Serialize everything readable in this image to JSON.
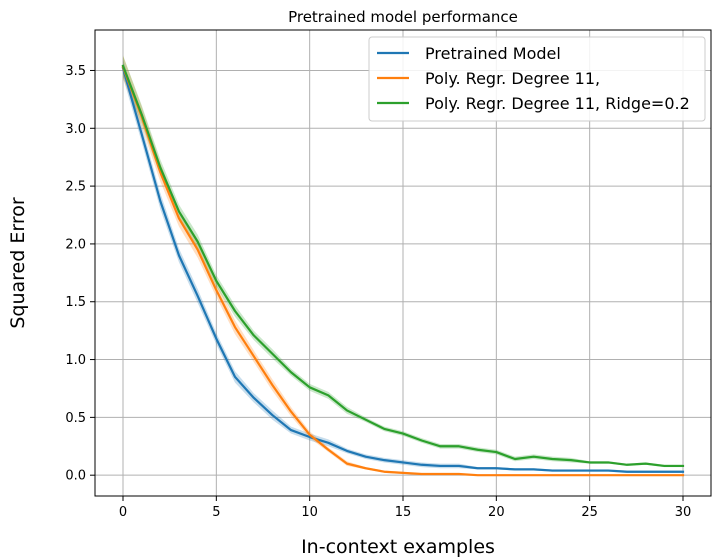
{
  "chart_data": {
    "type": "line",
    "title": "Pretrained model performance",
    "xlabel": "In-context examples",
    "ylabel": "Squared Error",
    "xlim": [
      -1.5,
      31.5
    ],
    "ylim": [
      -0.18,
      3.85
    ],
    "x_ticks": [
      0,
      5,
      10,
      15,
      20,
      25,
      30
    ],
    "x_tick_labels": [
      "0",
      "5",
      "10",
      "15",
      "20",
      "25",
      "30"
    ],
    "y_ticks": [
      0.0,
      0.5,
      1.0,
      1.5,
      2.0,
      2.5,
      3.0,
      3.5
    ],
    "y_tick_labels": [
      "0.0",
      "0.5",
      "1.0",
      "1.5",
      "2.0",
      "2.5",
      "3.0",
      "3.5"
    ],
    "grid": true,
    "legend_position": "top-right",
    "x": [
      0,
      1,
      2,
      3,
      4,
      5,
      6,
      7,
      8,
      9,
      10,
      11,
      12,
      13,
      14,
      15,
      16,
      17,
      18,
      19,
      20,
      21,
      22,
      23,
      24,
      25,
      26,
      27,
      28,
      29,
      30
    ],
    "series": [
      {
        "name": "Pretrained Model",
        "color": "#1f77b4",
        "values": [
          3.52,
          2.95,
          2.37,
          1.9,
          1.55,
          1.18,
          0.85,
          0.67,
          0.52,
          0.39,
          0.33,
          0.28,
          0.21,
          0.16,
          0.13,
          0.11,
          0.09,
          0.08,
          0.08,
          0.06,
          0.06,
          0.05,
          0.05,
          0.04,
          0.04,
          0.04,
          0.04,
          0.03,
          0.03,
          0.03,
          0.03
        ],
        "band": [
          0.08,
          0.07,
          0.07,
          0.06,
          0.06,
          0.05,
          0.05,
          0.04,
          0.04,
          0.03,
          0.03,
          0.03,
          0.02,
          0.02,
          0.02,
          0.02,
          0.02,
          0.02,
          0.02,
          0.01,
          0.01,
          0.01,
          0.01,
          0.01,
          0.01,
          0.01,
          0.01,
          0.01,
          0.01,
          0.01,
          0.01
        ]
      },
      {
        "name": "Poly. Regr. Degree 11,",
        "color": "#ff7f0e",
        "values": [
          3.53,
          3.1,
          2.62,
          2.22,
          1.95,
          1.6,
          1.28,
          1.03,
          0.78,
          0.55,
          0.35,
          0.22,
          0.1,
          0.06,
          0.03,
          0.02,
          0.01,
          0.01,
          0.01,
          0.0,
          0.0,
          0.0,
          0.0,
          0.0,
          0.0,
          0.0,
          0.0,
          0.0,
          0.0,
          0.0,
          0.0
        ],
        "band": [
          0.1,
          0.09,
          0.08,
          0.07,
          0.07,
          0.06,
          0.06,
          0.05,
          0.05,
          0.04,
          0.03,
          0.02,
          0.02,
          0.01,
          0.01,
          0.01,
          0.0,
          0.0,
          0.0,
          0.0,
          0.0,
          0.0,
          0.0,
          0.0,
          0.0,
          0.0,
          0.0,
          0.0,
          0.0,
          0.0,
          0.0
        ]
      },
      {
        "name": "Poly. Regr. Degree 11, Ridge=0.2",
        "color": "#2ca02c",
        "values": [
          3.54,
          3.12,
          2.66,
          2.28,
          2.02,
          1.68,
          1.42,
          1.21,
          1.05,
          0.89,
          0.76,
          0.69,
          0.56,
          0.48,
          0.4,
          0.36,
          0.3,
          0.25,
          0.25,
          0.22,
          0.2,
          0.14,
          0.16,
          0.14,
          0.13,
          0.11,
          0.11,
          0.09,
          0.1,
          0.08,
          0.08
        ],
        "band": [
          0.09,
          0.08,
          0.07,
          0.06,
          0.06,
          0.05,
          0.05,
          0.04,
          0.04,
          0.03,
          0.03,
          0.03,
          0.03,
          0.02,
          0.02,
          0.02,
          0.02,
          0.02,
          0.02,
          0.02,
          0.02,
          0.02,
          0.02,
          0.02,
          0.02,
          0.01,
          0.01,
          0.01,
          0.01,
          0.01,
          0.01
        ]
      }
    ]
  }
}
